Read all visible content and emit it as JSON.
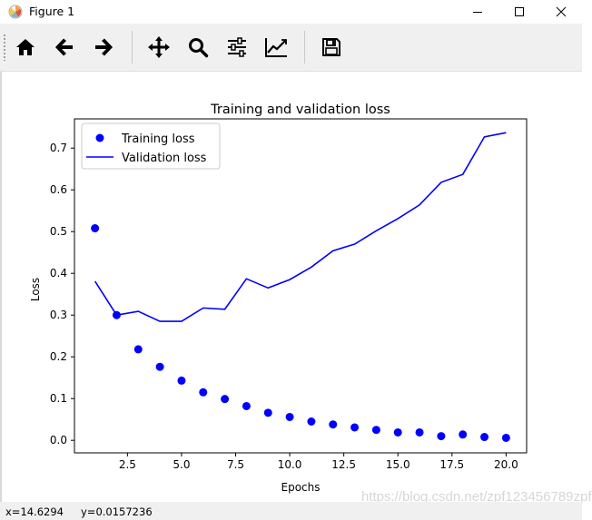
{
  "window": {
    "title": "Figure 1"
  },
  "toolbar": {
    "tools": [
      {
        "name": "home-icon"
      },
      {
        "name": "back-arrow-icon"
      },
      {
        "name": "forward-arrow-icon"
      },
      {
        "name": "pan-icon"
      },
      {
        "name": "zoom-icon"
      },
      {
        "name": "configure-subplots-icon"
      },
      {
        "name": "edit-axis-icon"
      },
      {
        "name": "save-icon"
      }
    ]
  },
  "chart_data": {
    "type": "line",
    "title": "Training and validation loss",
    "xlabel": "Epochs",
    "ylabel": "Loss",
    "xlim": [
      0.05,
      20.95
    ],
    "ylim": [
      -0.03,
      0.77
    ],
    "xticks": [
      "2.5",
      "5.0",
      "7.5",
      "10.0",
      "12.5",
      "15.0",
      "17.5",
      "20.0"
    ],
    "yticks": [
      "0.0",
      "0.1",
      "0.2",
      "0.3",
      "0.4",
      "0.5",
      "0.6",
      "0.7"
    ],
    "legend_position": "top-left",
    "grid": false,
    "x": [
      1,
      2,
      3,
      4,
      5,
      6,
      7,
      8,
      9,
      10,
      11,
      12,
      13,
      14,
      15,
      16,
      17,
      18,
      19,
      20
    ],
    "series": [
      {
        "name": "Training loss",
        "style": "points",
        "color": "#0000ff",
        "values": [
          0.508,
          0.3,
          0.218,
          0.176,
          0.143,
          0.115,
          0.099,
          0.082,
          0.066,
          0.056,
          0.045,
          0.038,
          0.031,
          0.025,
          0.019,
          0.019,
          0.01,
          0.014,
          0.008,
          0.006
        ]
      },
      {
        "name": "Validation loss",
        "style": "line",
        "color": "#0000ff",
        "values": [
          0.381,
          0.3,
          0.309,
          0.285,
          0.285,
          0.317,
          0.314,
          0.387,
          0.365,
          0.385,
          0.415,
          0.454,
          0.47,
          0.502,
          0.531,
          0.564,
          0.618,
          0.637,
          0.727,
          0.737
        ]
      }
    ]
  },
  "status": {
    "x_readout": "x=14.6294",
    "y_readout": "y=0.0157236"
  },
  "watermark": "https://blog.csdn.net/zpf123456789zpf"
}
